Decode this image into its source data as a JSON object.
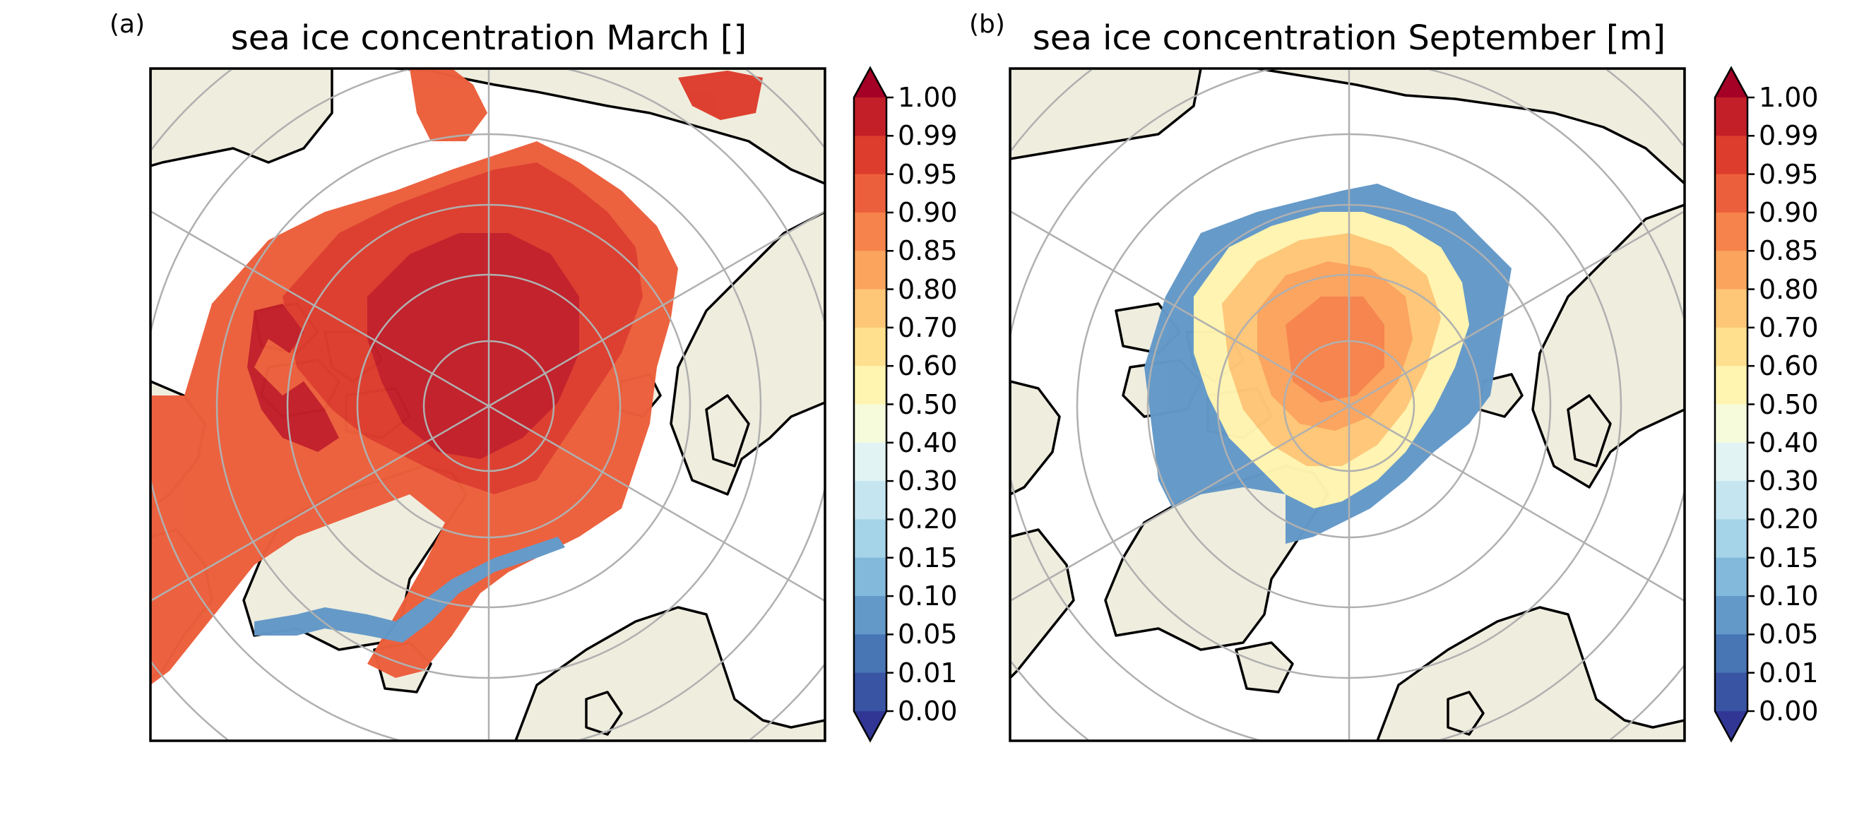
{
  "panels": [
    {
      "letter": "(a)",
      "title": "sea ice concentration March []",
      "land_color": "#efedde",
      "ocean_color": "#ffffff",
      "gridline_color": "#b0b0b0"
    },
    {
      "letter": "(b)",
      "title": "sea ice concentration September [m]",
      "land_color": "#efedde",
      "ocean_color": "#ffffff",
      "gridline_color": "#b0b0b0"
    }
  ],
  "colorbar": {
    "ticks": [
      "1.00",
      "0.99",
      "0.95",
      "0.90",
      "0.85",
      "0.80",
      "0.70",
      "0.60",
      "0.50",
      "0.40",
      "0.30",
      "0.20",
      "0.15",
      "0.10",
      "0.05",
      "0.01",
      "0.00"
    ],
    "colors": [
      "#c21f29",
      "#dd3d2d",
      "#ec5f3c",
      "#f6834c",
      "#fba45d",
      "#fec677",
      "#ffe08f",
      "#fff4b0",
      "#f6fbdc",
      "#e2f3f3",
      "#c5e6f1",
      "#a5d3e7",
      "#83b9db",
      "#6399c8",
      "#4875b4",
      "#3a54a4"
    ],
    "over_color": "#a50026",
    "under_color": "#313695"
  },
  "chart_data": [
    {
      "type": "heatmap",
      "title": "sea ice concentration March []",
      "variable": "sea ice concentration",
      "month": "March",
      "units": "",
      "projection": "north polar stereographic",
      "colorbar_ticks": [
        1.0,
        0.99,
        0.95,
        0.9,
        0.85,
        0.8,
        0.7,
        0.6,
        0.5,
        0.4,
        0.3,
        0.2,
        0.15,
        0.1,
        0.05,
        0.01,
        0.0
      ],
      "colorbar_extend": "both",
      "dominant_range_central_arctic": [
        0.99,
        1.0
      ],
      "dominant_range_marginal_seas": [
        0.9,
        0.99
      ]
    },
    {
      "type": "heatmap",
      "title": "sea ice concentration September [m]",
      "variable": "sea ice concentration",
      "month": "September",
      "units": "m",
      "projection": "north polar stereographic",
      "colorbar_ticks": [
        1.0,
        0.99,
        0.95,
        0.9,
        0.85,
        0.8,
        0.7,
        0.6,
        0.5,
        0.4,
        0.3,
        0.2,
        0.15,
        0.1,
        0.05,
        0.01,
        0.0
      ],
      "colorbar_extend": "both",
      "dominant_range_central_arctic": [
        0.8,
        0.9
      ],
      "dominant_range_ice_edge": [
        0.01,
        0.2
      ]
    }
  ]
}
